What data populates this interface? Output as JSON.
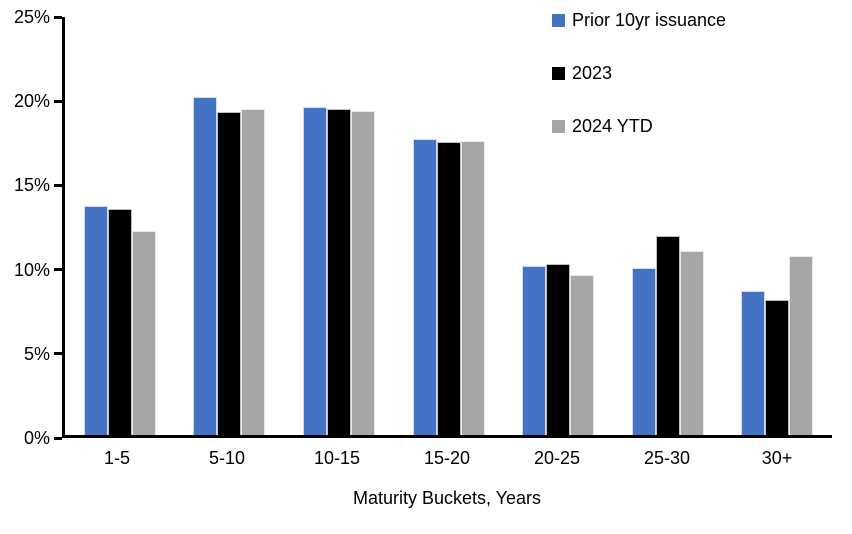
{
  "chart_data": {
    "type": "bar",
    "title": "",
    "categories": [
      "1-5",
      "5-10",
      "10-15",
      "15-20",
      "20-25",
      "25-30",
      "30+"
    ],
    "series": [
      {
        "name": "Prior 10yr issuance",
        "color": "#4472C4",
        "values": [
          13.7,
          20.2,
          19.6,
          17.7,
          10.1,
          10.0,
          8.6
        ]
      },
      {
        "name": "2023",
        "color": "#000000",
        "values": [
          13.5,
          19.3,
          19.5,
          17.5,
          10.2,
          11.9,
          8.1
        ]
      },
      {
        "name": "2024 YTD",
        "color": "#A6A6A6",
        "values": [
          12.2,
          19.5,
          19.4,
          17.6,
          9.6,
          11.0,
          10.7
        ]
      }
    ],
    "xlabel": "Maturity Buckets, Years",
    "ylabel": "",
    "ylim": [
      0,
      25
    ],
    "yticks": [
      0,
      5,
      10,
      15,
      20,
      25
    ],
    "ytick_labels": [
      "0%",
      "5%",
      "10%",
      "15%",
      "20%",
      "25%"
    ],
    "grid": false,
    "legend_position": "top-right",
    "axis_color": "#000000"
  }
}
